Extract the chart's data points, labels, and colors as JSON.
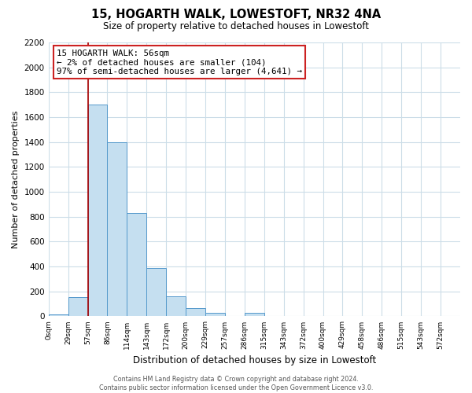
{
  "title": "15, HOGARTH WALK, LOWESTOFT, NR32 4NA",
  "subtitle": "Size of property relative to detached houses in Lowestoft",
  "xlabel": "Distribution of detached houses by size in Lowestoft",
  "ylabel": "Number of detached properties",
  "bin_labels": [
    "0sqm",
    "29sqm",
    "57sqm",
    "86sqm",
    "114sqm",
    "143sqm",
    "172sqm",
    "200sqm",
    "229sqm",
    "257sqm",
    "286sqm",
    "315sqm",
    "343sqm",
    "372sqm",
    "400sqm",
    "429sqm",
    "458sqm",
    "486sqm",
    "515sqm",
    "543sqm",
    "572sqm"
  ],
  "bar_heights": [
    15,
    155,
    1700,
    1395,
    830,
    385,
    160,
    65,
    28,
    0,
    28,
    0,
    0,
    0,
    0,
    0,
    0,
    0,
    0,
    0,
    0
  ],
  "bar_color": "#c5dff0",
  "bar_edge_color": "#5599cc",
  "property_line_color": "#aa0000",
  "property_line_bin_idx": 2,
  "ylim": [
    0,
    2200
  ],
  "yticks": [
    0,
    200,
    400,
    600,
    800,
    1000,
    1200,
    1400,
    1600,
    1800,
    2000,
    2200
  ],
  "annotation_title": "15 HOGARTH WALK: 56sqm",
  "annotation_line1": "← 2% of detached houses are smaller (104)",
  "annotation_line2": "97% of semi-detached houses are larger (4,641) →",
  "annotation_box_facecolor": "#ffffff",
  "annotation_box_edgecolor": "#cc2222",
  "footer_line1": "Contains HM Land Registry data © Crown copyright and database right 2024.",
  "footer_line2": "Contains public sector information licensed under the Open Government Licence v3.0.",
  "grid_color": "#ccdde8",
  "background_color": "#ffffff",
  "fig_width": 6.0,
  "fig_height": 5.0,
  "dpi": 100
}
